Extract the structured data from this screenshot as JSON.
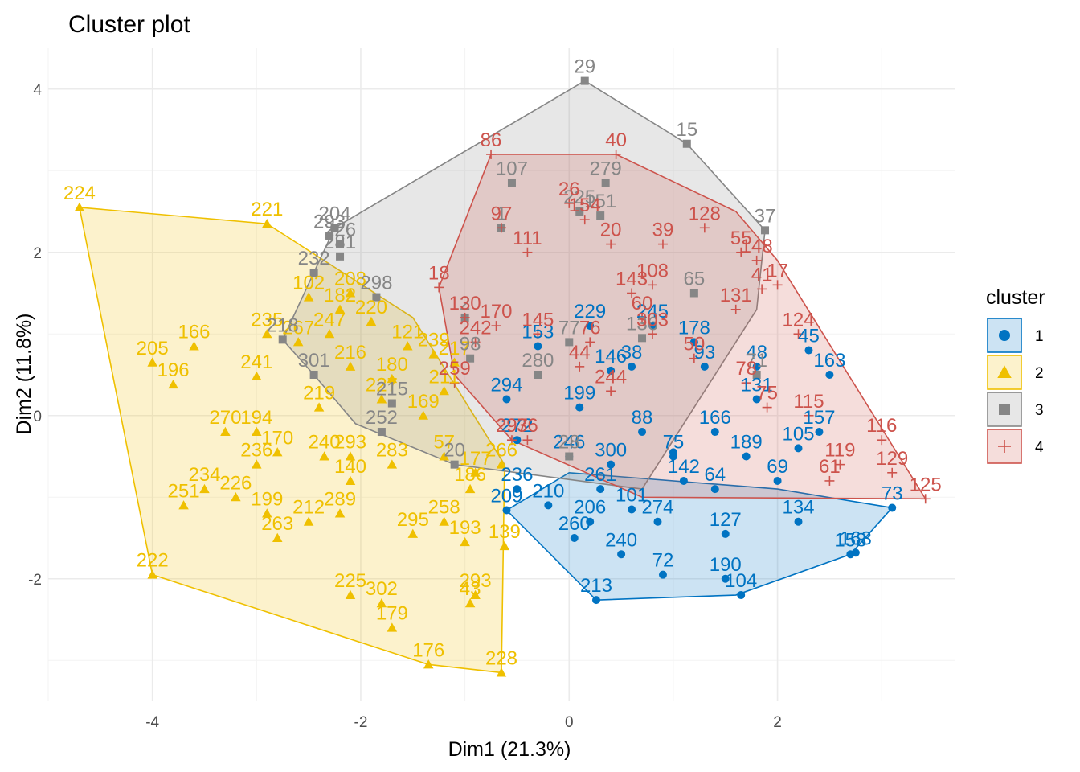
{
  "chart_data": {
    "type": "scatter",
    "title": "Cluster plot",
    "xlabel": "Dim1 (21.3%)",
    "ylabel": "Dim2 (11.8%)",
    "xlim": [
      -5.0,
      3.7
    ],
    "ylim": [
      -3.5,
      4.5
    ],
    "x_ticks": [
      -4,
      -2,
      0,
      2
    ],
    "y_ticks": [
      -2,
      0,
      2,
      4
    ],
    "grid": true,
    "legend": {
      "title": "cluster",
      "position": "right",
      "labels": [
        "1",
        "2",
        "3",
        "4"
      ]
    },
    "colors": {
      "1": "#0073C2",
      "2": "#EFC000",
      "3": "#868686",
      "4": "#CD534C"
    },
    "marker_shapes": {
      "1": "circle",
      "2": "triangle",
      "3": "square",
      "4": "cross"
    },
    "hulls": {
      "1": [
        [
          -0.6,
          -1.16
        ],
        [
          0.26,
          -2.26
        ],
        [
          1.6,
          -2.2
        ],
        [
          2.7,
          -1.7
        ],
        [
          3.1,
          -1.13
        ],
        [
          2.0,
          -0.9
        ],
        [
          0.0,
          -0.7
        ]
      ],
      "2": [
        [
          -4.7,
          2.55
        ],
        [
          -2.9,
          2.35
        ],
        [
          -1.5,
          1.2
        ],
        [
          -0.62,
          -0.6
        ],
        [
          -0.65,
          -3.15
        ],
        [
          -1.35,
          -3.05
        ],
        [
          -4.0,
          -1.95
        ]
      ],
      "3": [
        [
          -2.75,
          0.93
        ],
        [
          -2.25,
          2.3
        ],
        [
          0.15,
          4.1
        ],
        [
          1.13,
          3.33
        ],
        [
          1.88,
          2.27
        ],
        [
          1.8,
          1.3
        ],
        [
          0.7,
          -0.9
        ],
        [
          -1.1,
          -0.6
        ],
        [
          -2.05,
          -0.1
        ],
        [
          -2.45,
          0.5
        ]
      ],
      "4": [
        [
          -1.25,
          1.57
        ],
        [
          -0.75,
          3.2
        ],
        [
          0.45,
          3.2
        ],
        [
          1.6,
          2.5
        ],
        [
          2.0,
          1.9
        ],
        [
          3.42,
          -1.02
        ],
        [
          0.7,
          -1.0
        ],
        [
          -0.55,
          -0.3
        ],
        [
          -1.1,
          0.5
        ]
      ]
    },
    "series": [
      {
        "name": "1",
        "points": [
          {
            "x": 3.1,
            "y": -1.13,
            "label": "73"
          },
          {
            "x": 2.7,
            "y": -1.7,
            "label": "158"
          },
          {
            "x": 2.75,
            "y": -1.68,
            "label": "163"
          },
          {
            "x": 1.65,
            "y": -2.2,
            "label": "104"
          },
          {
            "x": 1.5,
            "y": -2.0,
            "label": "190"
          },
          {
            "x": 0.26,
            "y": -2.26,
            "label": "213"
          },
          {
            "x": 0.9,
            "y": -1.95,
            "label": "72"
          },
          {
            "x": -0.6,
            "y": -1.16,
            "label": "209"
          },
          {
            "x": 0.5,
            "y": -1.7,
            "label": "240"
          },
          {
            "x": 0.85,
            "y": -1.3,
            "label": "274"
          },
          {
            "x": 1.5,
            "y": -1.45,
            "label": "127"
          },
          {
            "x": 2.2,
            "y": -1.3,
            "label": "134"
          },
          {
            "x": 0.05,
            "y": -1.5,
            "label": "260"
          },
          {
            "x": 0.2,
            "y": -1.3,
            "label": "206"
          },
          {
            "x": 1.0,
            "y": -0.5,
            "label": "75"
          },
          {
            "x": 0.7,
            "y": -0.2,
            "label": "88"
          },
          {
            "x": 0.6,
            "y": 0.6,
            "label": "38"
          },
          {
            "x": 1.3,
            "y": 0.6,
            "label": "93"
          },
          {
            "x": 1.8,
            "y": 0.6,
            "label": "48"
          },
          {
            "x": 2.3,
            "y": 0.8,
            "label": "45"
          },
          {
            "x": 2.5,
            "y": 0.5,
            "label": "163"
          },
          {
            "x": 2.4,
            "y": -0.2,
            "label": "157"
          },
          {
            "x": 2.2,
            "y": -0.4,
            "label": "105"
          },
          {
            "x": 2.0,
            "y": -0.8,
            "label": "69"
          },
          {
            "x": 0.2,
            "y": 1.1,
            "label": "229"
          },
          {
            "x": 0.8,
            "y": 1.1,
            "label": "245"
          },
          {
            "x": 1.2,
            "y": 0.9,
            "label": "178"
          },
          {
            "x": -0.3,
            "y": 0.85,
            "label": "153"
          },
          {
            "x": 0.4,
            "y": 0.55,
            "label": "146"
          },
          {
            "x": 1.8,
            "y": 0.2,
            "label": "131"
          },
          {
            "x": -0.6,
            "y": 0.2,
            "label": "294"
          },
          {
            "x": -0.5,
            "y": -0.3,
            "label": "272"
          },
          {
            "x": 0.0,
            "y": -0.5,
            "label": "246"
          },
          {
            "x": 0.4,
            "y": -0.6,
            "label": "300"
          },
          {
            "x": 1.1,
            "y": -0.8,
            "label": "142"
          },
          {
            "x": 1.4,
            "y": -0.9,
            "label": "64"
          },
          {
            "x": -0.5,
            "y": -0.9,
            "label": "236"
          },
          {
            "x": -0.2,
            "y": -1.1,
            "label": "210"
          },
          {
            "x": 0.1,
            "y": 0.1,
            "label": "199"
          },
          {
            "x": 1.4,
            "y": -0.2,
            "label": "166"
          },
          {
            "x": 1.7,
            "y": -0.5,
            "label": "189"
          },
          {
            "x": 1.0,
            "y": -0.45,
            "label": ""
          },
          {
            "x": 0.3,
            "y": -0.9,
            "label": "261"
          },
          {
            "x": 0.6,
            "y": -1.15,
            "label": "101"
          }
        ]
      },
      {
        "name": "2",
        "points": [
          {
            "x": -4.7,
            "y": 2.55,
            "label": "224"
          },
          {
            "x": -2.9,
            "y": 2.35,
            "label": "221"
          },
          {
            "x": -4.0,
            "y": 0.65,
            "label": "205"
          },
          {
            "x": -3.6,
            "y": 0.85,
            "label": "166"
          },
          {
            "x": -3.8,
            "y": 0.38,
            "label": "196"
          },
          {
            "x": -3.0,
            "y": 0.48,
            "label": "241"
          },
          {
            "x": -2.9,
            "y": 1.0,
            "label": "235"
          },
          {
            "x": -3.3,
            "y": -0.2,
            "label": "270"
          },
          {
            "x": -3.0,
            "y": -0.2,
            "label": "194"
          },
          {
            "x": -2.8,
            "y": -0.45,
            "label": "170"
          },
          {
            "x": -3.5,
            "y": -0.9,
            "label": "234"
          },
          {
            "x": -3.7,
            "y": -1.1,
            "label": "251"
          },
          {
            "x": -3.2,
            "y": -1.0,
            "label": "226"
          },
          {
            "x": -2.9,
            "y": -1.2,
            "label": "199"
          },
          {
            "x": -2.8,
            "y": -1.5,
            "label": "263"
          },
          {
            "x": -2.5,
            "y": -1.3,
            "label": "212"
          },
          {
            "x": -2.2,
            "y": -1.2,
            "label": "289"
          },
          {
            "x": -4.0,
            "y": -1.95,
            "label": "222"
          },
          {
            "x": -2.1,
            "y": -2.2,
            "label": "225"
          },
          {
            "x": -1.8,
            "y": -2.3,
            "label": "302"
          },
          {
            "x": -1.7,
            "y": -2.6,
            "label": "179"
          },
          {
            "x": -1.35,
            "y": -3.05,
            "label": "176"
          },
          {
            "x": -0.65,
            "y": -3.15,
            "label": "228"
          },
          {
            "x": -0.95,
            "y": -2.3,
            "label": "43"
          },
          {
            "x": -0.9,
            "y": -2.2,
            "label": "293"
          },
          {
            "x": -0.62,
            "y": -1.6,
            "label": "139"
          },
          {
            "x": -1.0,
            "y": -1.55,
            "label": "193"
          },
          {
            "x": -1.5,
            "y": -1.45,
            "label": "295"
          },
          {
            "x": -1.2,
            "y": -1.3,
            "label": "258"
          },
          {
            "x": -0.95,
            "y": -0.9,
            "label": "186"
          },
          {
            "x": -2.1,
            "y": -0.8,
            "label": "140"
          },
          {
            "x": -2.1,
            "y": 0.6,
            "label": "216"
          },
          {
            "x": -1.7,
            "y": 0.45,
            "label": "180"
          },
          {
            "x": -1.8,
            "y": 0.2,
            "label": "227"
          },
          {
            "x": -2.4,
            "y": 0.1,
            "label": "219"
          },
          {
            "x": -1.55,
            "y": 0.85,
            "label": "121"
          },
          {
            "x": -1.9,
            "y": 1.15,
            "label": "220"
          },
          {
            "x": -2.3,
            "y": 1.0,
            "label": "247"
          },
          {
            "x": -2.2,
            "y": 1.3,
            "label": "182"
          },
          {
            "x": -1.3,
            "y": 0.75,
            "label": "239"
          },
          {
            "x": -1.1,
            "y": 0.65,
            "label": "217"
          },
          {
            "x": -1.2,
            "y": 0.3,
            "label": "211"
          },
          {
            "x": -1.4,
            "y": 0.0,
            "label": "169"
          },
          {
            "x": -1.2,
            "y": -0.5,
            "label": "57"
          },
          {
            "x": -2.1,
            "y": -0.5,
            "label": "293"
          },
          {
            "x": -1.7,
            "y": -0.6,
            "label": "283"
          },
          {
            "x": -0.9,
            "y": -0.7,
            "label": "177"
          },
          {
            "x": -0.65,
            "y": -0.6,
            "label": "266"
          },
          {
            "x": -2.1,
            "y": 1.5,
            "label": "208"
          },
          {
            "x": -2.5,
            "y": 1.45,
            "label": "102"
          },
          {
            "x": -2.6,
            "y": 0.9,
            "label": "267"
          },
          {
            "x": -2.35,
            "y": -0.5,
            "label": "240"
          },
          {
            "x": -3.0,
            "y": -0.6,
            "label": "236"
          }
        ]
      },
      {
        "name": "3",
        "points": [
          {
            "x": 0.15,
            "y": 4.1,
            "label": "29"
          },
          {
            "x": 1.13,
            "y": 3.33,
            "label": "15"
          },
          {
            "x": 1.88,
            "y": 2.27,
            "label": "37"
          },
          {
            "x": -0.55,
            "y": 2.85,
            "label": "107"
          },
          {
            "x": 0.35,
            "y": 2.85,
            "label": "279"
          },
          {
            "x": 0.1,
            "y": 2.5,
            "label": "225"
          },
          {
            "x": 0.3,
            "y": 2.45,
            "label": "151"
          },
          {
            "x": -0.65,
            "y": 2.3,
            "label": "1"
          },
          {
            "x": -2.25,
            "y": 2.3,
            "label": "204"
          },
          {
            "x": -2.3,
            "y": 2.2,
            "label": "293"
          },
          {
            "x": -2.2,
            "y": 2.1,
            "label": "226"
          },
          {
            "x": -2.2,
            "y": 1.95,
            "label": "281"
          },
          {
            "x": -2.45,
            "y": 1.75,
            "label": "232"
          },
          {
            "x": -2.75,
            "y": 0.93,
            "label": "218"
          },
          {
            "x": -2.45,
            "y": 0.5,
            "label": "301"
          },
          {
            "x": -1.85,
            "y": 1.45,
            "label": "298"
          },
          {
            "x": -0.95,
            "y": 0.7,
            "label": "98"
          },
          {
            "x": 0.0,
            "y": 0.9,
            "label": "77"
          },
          {
            "x": 1.2,
            "y": 1.5,
            "label": "65"
          },
          {
            "x": 0.7,
            "y": 0.95,
            "label": "136"
          },
          {
            "x": 1.8,
            "y": 0.5,
            "label": "71"
          },
          {
            "x": -1.7,
            "y": 0.15,
            "label": "215"
          },
          {
            "x": -1.1,
            "y": -0.6,
            "label": "20"
          },
          {
            "x": -1.8,
            "y": -0.2,
            "label": "252"
          },
          {
            "x": 0.0,
            "y": -0.5,
            "label": "28"
          },
          {
            "x": -0.3,
            "y": 0.5,
            "label": "280"
          },
          {
            "x": -1.0,
            "y": 1.2,
            "label": "2"
          }
        ]
      },
      {
        "name": "4",
        "points": [
          {
            "x": -0.75,
            "y": 3.2,
            "label": "86"
          },
          {
            "x": 0.45,
            "y": 3.2,
            "label": "40"
          },
          {
            "x": 1.3,
            "y": 2.3,
            "label": "128"
          },
          {
            "x": 0.0,
            "y": 2.6,
            "label": "26"
          },
          {
            "x": 0.15,
            "y": 2.4,
            "label": "154"
          },
          {
            "x": 0.4,
            "y": 2.1,
            "label": "20"
          },
          {
            "x": -0.65,
            "y": 2.3,
            "label": "97"
          },
          {
            "x": -0.4,
            "y": 2.0,
            "label": "111"
          },
          {
            "x": 0.9,
            "y": 2.1,
            "label": "39"
          },
          {
            "x": 1.65,
            "y": 2.0,
            "label": "55"
          },
          {
            "x": 1.8,
            "y": 1.9,
            "label": "148"
          },
          {
            "x": 2.0,
            "y": 1.6,
            "label": "17"
          },
          {
            "x": 1.85,
            "y": 1.55,
            "label": "41"
          },
          {
            "x": 1.6,
            "y": 1.3,
            "label": "131"
          },
          {
            "x": 2.2,
            "y": 1.0,
            "label": "124"
          },
          {
            "x": -1.25,
            "y": 1.57,
            "label": "18"
          },
          {
            "x": -1.0,
            "y": 1.2,
            "label": "130"
          },
          {
            "x": -0.7,
            "y": 1.1,
            "label": "170"
          },
          {
            "x": -0.9,
            "y": 0.9,
            "label": "242"
          },
          {
            "x": 0.2,
            "y": 0.9,
            "label": "76"
          },
          {
            "x": 0.8,
            "y": 1.0,
            "label": "303"
          },
          {
            "x": 0.7,
            "y": 1.2,
            "label": "60"
          },
          {
            "x": 1.2,
            "y": 0.7,
            "label": "50"
          },
          {
            "x": 0.1,
            "y": 0.6,
            "label": "44"
          },
          {
            "x": -1.1,
            "y": 0.4,
            "label": "259"
          },
          {
            "x": 3.0,
            "y": -0.3,
            "label": "116"
          },
          {
            "x": 3.42,
            "y": -1.02,
            "label": "125"
          },
          {
            "x": 3.1,
            "y": -0.7,
            "label": "129"
          },
          {
            "x": 2.6,
            "y": -0.6,
            "label": "119"
          },
          {
            "x": 2.5,
            "y": -0.8,
            "label": "61"
          },
          {
            "x": 2.3,
            "y": 0.0,
            "label": "115"
          },
          {
            "x": 1.9,
            "y": 0.1,
            "label": "75"
          },
          {
            "x": -0.4,
            "y": -0.3,
            "label": "36"
          },
          {
            "x": -0.55,
            "y": -0.3,
            "label": "297"
          },
          {
            "x": 0.4,
            "y": 0.3,
            "label": "244"
          },
          {
            "x": 1.7,
            "y": 0.4,
            "label": "78"
          },
          {
            "x": 0.8,
            "y": 1.6,
            "label": "108"
          },
          {
            "x": 0.6,
            "y": 1.5,
            "label": "143"
          },
          {
            "x": -0.3,
            "y": 1.0,
            "label": "145"
          }
        ]
      }
    ]
  }
}
